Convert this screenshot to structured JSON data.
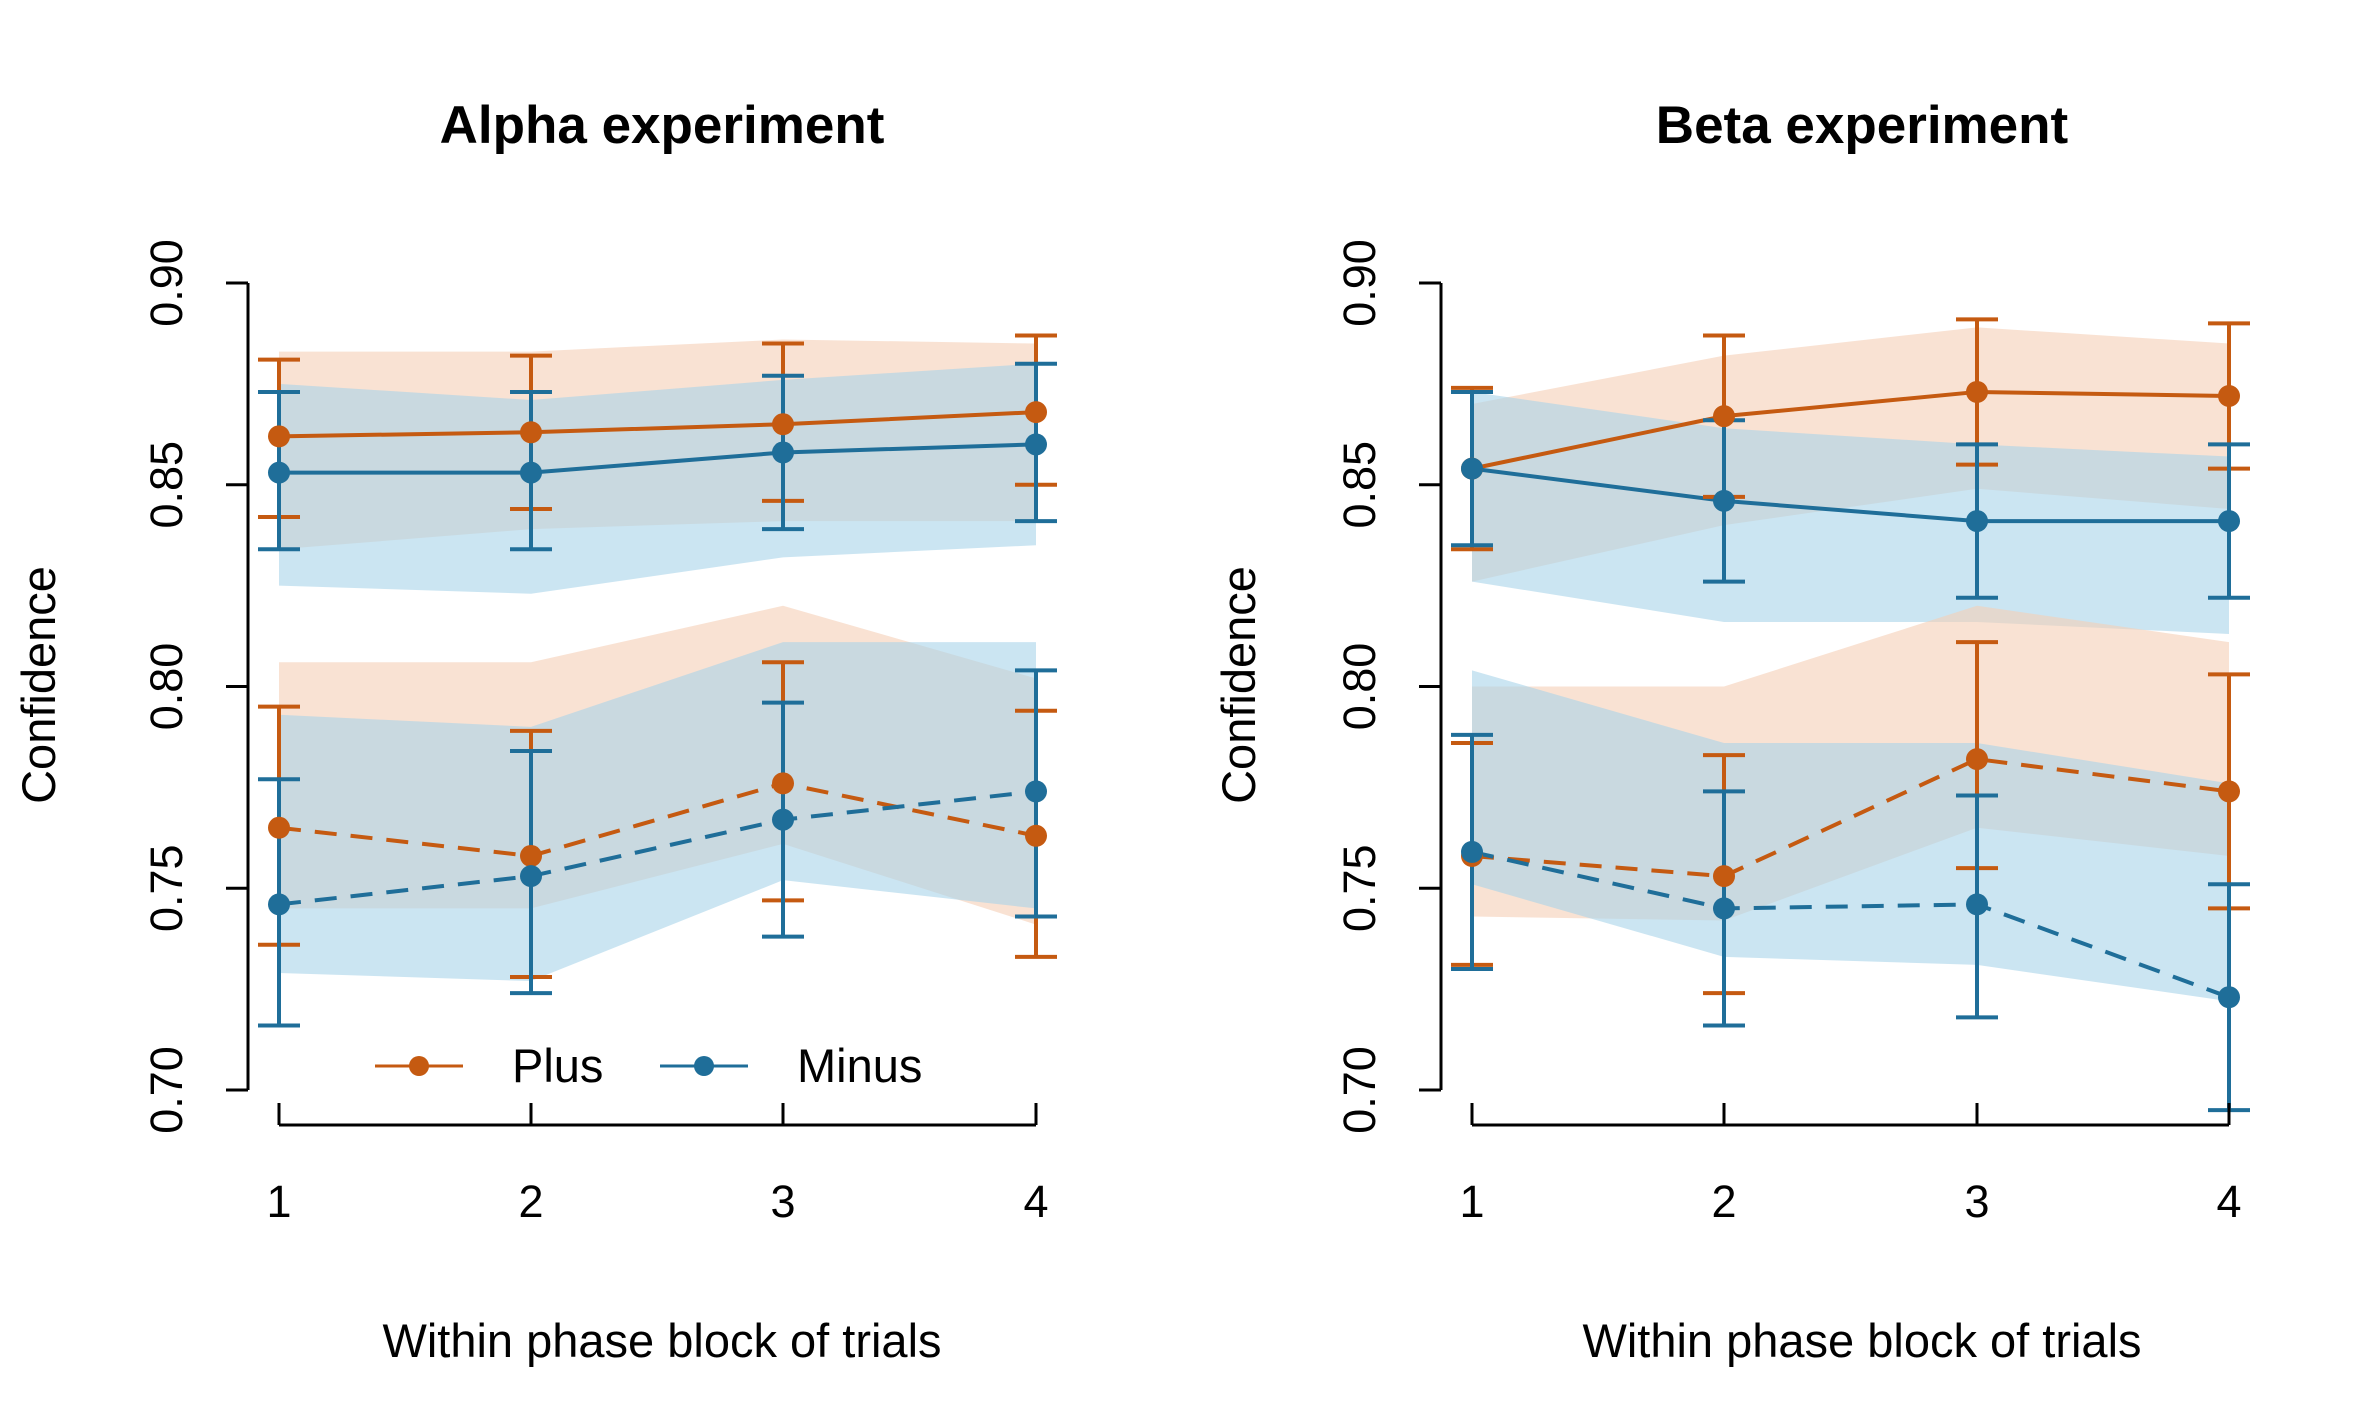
{
  "colors": {
    "plus": "#C55A11",
    "plus_band": "#F5CFB5",
    "minus": "#1F6E99",
    "minus_band": "#A9D4EA",
    "overlap": "#D5C6BE"
  },
  "legend": [
    {
      "label": "Plus",
      "color": "#C55A11",
      "marker": "filled-circle"
    },
    {
      "label": "Minus",
      "color": "#1F6E99",
      "marker": "filled-circle"
    }
  ],
  "chart_data": [
    {
      "type": "line",
      "title": "Alpha experiment",
      "xlabel": "Within phase block of trials",
      "ylabel": "Confidence",
      "x": [
        1,
        2,
        3,
        4
      ],
      "xticks": [
        "1",
        "2",
        "3",
        "4"
      ],
      "yticks": [
        "0.70",
        "0.75",
        "0.80",
        "0.85",
        "0.90"
      ],
      "ylim": [
        0.7,
        0.9
      ],
      "legend_placement": "bottom",
      "series": [
        {
          "name": "Plus",
          "group": "upper",
          "dash": "solid",
          "color": "#C55A11",
          "values": [
            0.862,
            0.863,
            0.865,
            0.868
          ],
          "err_low": [
            0.842,
            0.844,
            0.846,
            0.85
          ],
          "err_high": [
            0.881,
            0.882,
            0.885,
            0.887
          ],
          "band_low": [
            0.834,
            0.839,
            0.841,
            0.841
          ],
          "band_high": [
            0.883,
            0.883,
            0.886,
            0.885
          ]
        },
        {
          "name": "Minus",
          "group": "upper",
          "dash": "solid",
          "color": "#1F6E99",
          "values": [
            0.853,
            0.853,
            0.858,
            0.86
          ],
          "err_low": [
            0.834,
            0.834,
            0.839,
            0.841
          ],
          "err_high": [
            0.873,
            0.873,
            0.877,
            0.88
          ],
          "band_low": [
            0.825,
            0.823,
            0.832,
            0.835
          ],
          "band_high": [
            0.875,
            0.871,
            0.876,
            0.88
          ]
        },
        {
          "name": "Plus",
          "group": "lower",
          "dash": "dashed",
          "color": "#C55A11",
          "values": [
            0.765,
            0.758,
            0.776,
            0.763
          ],
          "err_low": [
            0.736,
            0.728,
            0.747,
            0.733
          ],
          "err_high": [
            0.795,
            0.789,
            0.806,
            0.794
          ],
          "band_low": [
            0.745,
            0.745,
            0.761,
            0.741
          ],
          "band_high": [
            0.806,
            0.806,
            0.82,
            0.802
          ]
        },
        {
          "name": "Minus",
          "group": "lower",
          "dash": "dashed",
          "color": "#1F6E99",
          "values": [
            0.746,
            0.753,
            0.767,
            0.774
          ],
          "err_low": [
            0.716,
            0.724,
            0.738,
            0.743
          ],
          "err_high": [
            0.777,
            0.784,
            0.796,
            0.804
          ],
          "band_low": [
            0.729,
            0.727,
            0.752,
            0.745
          ],
          "band_high": [
            0.793,
            0.79,
            0.811,
            0.811
          ]
        }
      ]
    },
    {
      "type": "line",
      "title": "Beta experiment",
      "xlabel": "Within phase block of trials",
      "ylabel": "Confidence",
      "x": [
        1,
        2,
        3,
        4
      ],
      "xticks": [
        "1",
        "2",
        "3",
        "4"
      ],
      "yticks": [
        "0.70",
        "0.75",
        "0.80",
        "0.85",
        "0.90"
      ],
      "ylim": [
        0.7,
        0.9
      ],
      "series": [
        {
          "name": "Plus",
          "group": "upper",
          "dash": "solid",
          "color": "#C55A11",
          "values": [
            0.854,
            0.867,
            0.873,
            0.872
          ],
          "err_low": [
            0.834,
            0.847,
            0.855,
            0.854
          ],
          "err_high": [
            0.874,
            0.887,
            0.891,
            0.89
          ],
          "band_low": [
            0.826,
            0.84,
            0.849,
            0.844
          ],
          "band_high": [
            0.87,
            0.882,
            0.889,
            0.885
          ]
        },
        {
          "name": "Minus",
          "group": "upper",
          "dash": "solid",
          "color": "#1F6E99",
          "values": [
            0.854,
            0.846,
            0.841,
            0.841
          ],
          "err_low": [
            0.835,
            0.826,
            0.822,
            0.822
          ],
          "err_high": [
            0.873,
            0.866,
            0.86,
            0.86
          ],
          "band_low": [
            0.826,
            0.816,
            0.816,
            0.813
          ],
          "band_high": [
            0.873,
            0.864,
            0.86,
            0.857
          ]
        },
        {
          "name": "Plus",
          "group": "lower",
          "dash": "dashed",
          "color": "#C55A11",
          "values": [
            0.758,
            0.753,
            0.782,
            0.774
          ],
          "err_low": [
            0.731,
            0.724,
            0.755,
            0.745
          ],
          "err_high": [
            0.786,
            0.783,
            0.811,
            0.803
          ],
          "band_low": [
            0.743,
            0.742,
            0.765,
            0.758
          ],
          "band_high": [
            0.8,
            0.8,
            0.82,
            0.811
          ]
        },
        {
          "name": "Minus",
          "group": "lower",
          "dash": "dashed",
          "color": "#1F6E99",
          "values": [
            0.759,
            0.745,
            0.746,
            0.723
          ],
          "err_low": [
            0.73,
            0.716,
            0.718,
            0.695
          ],
          "err_high": [
            0.788,
            0.774,
            0.773,
            0.751
          ],
          "band_low": [
            0.751,
            0.733,
            0.731,
            0.722
          ],
          "band_high": [
            0.804,
            0.786,
            0.786,
            0.776
          ]
        }
      ]
    }
  ]
}
